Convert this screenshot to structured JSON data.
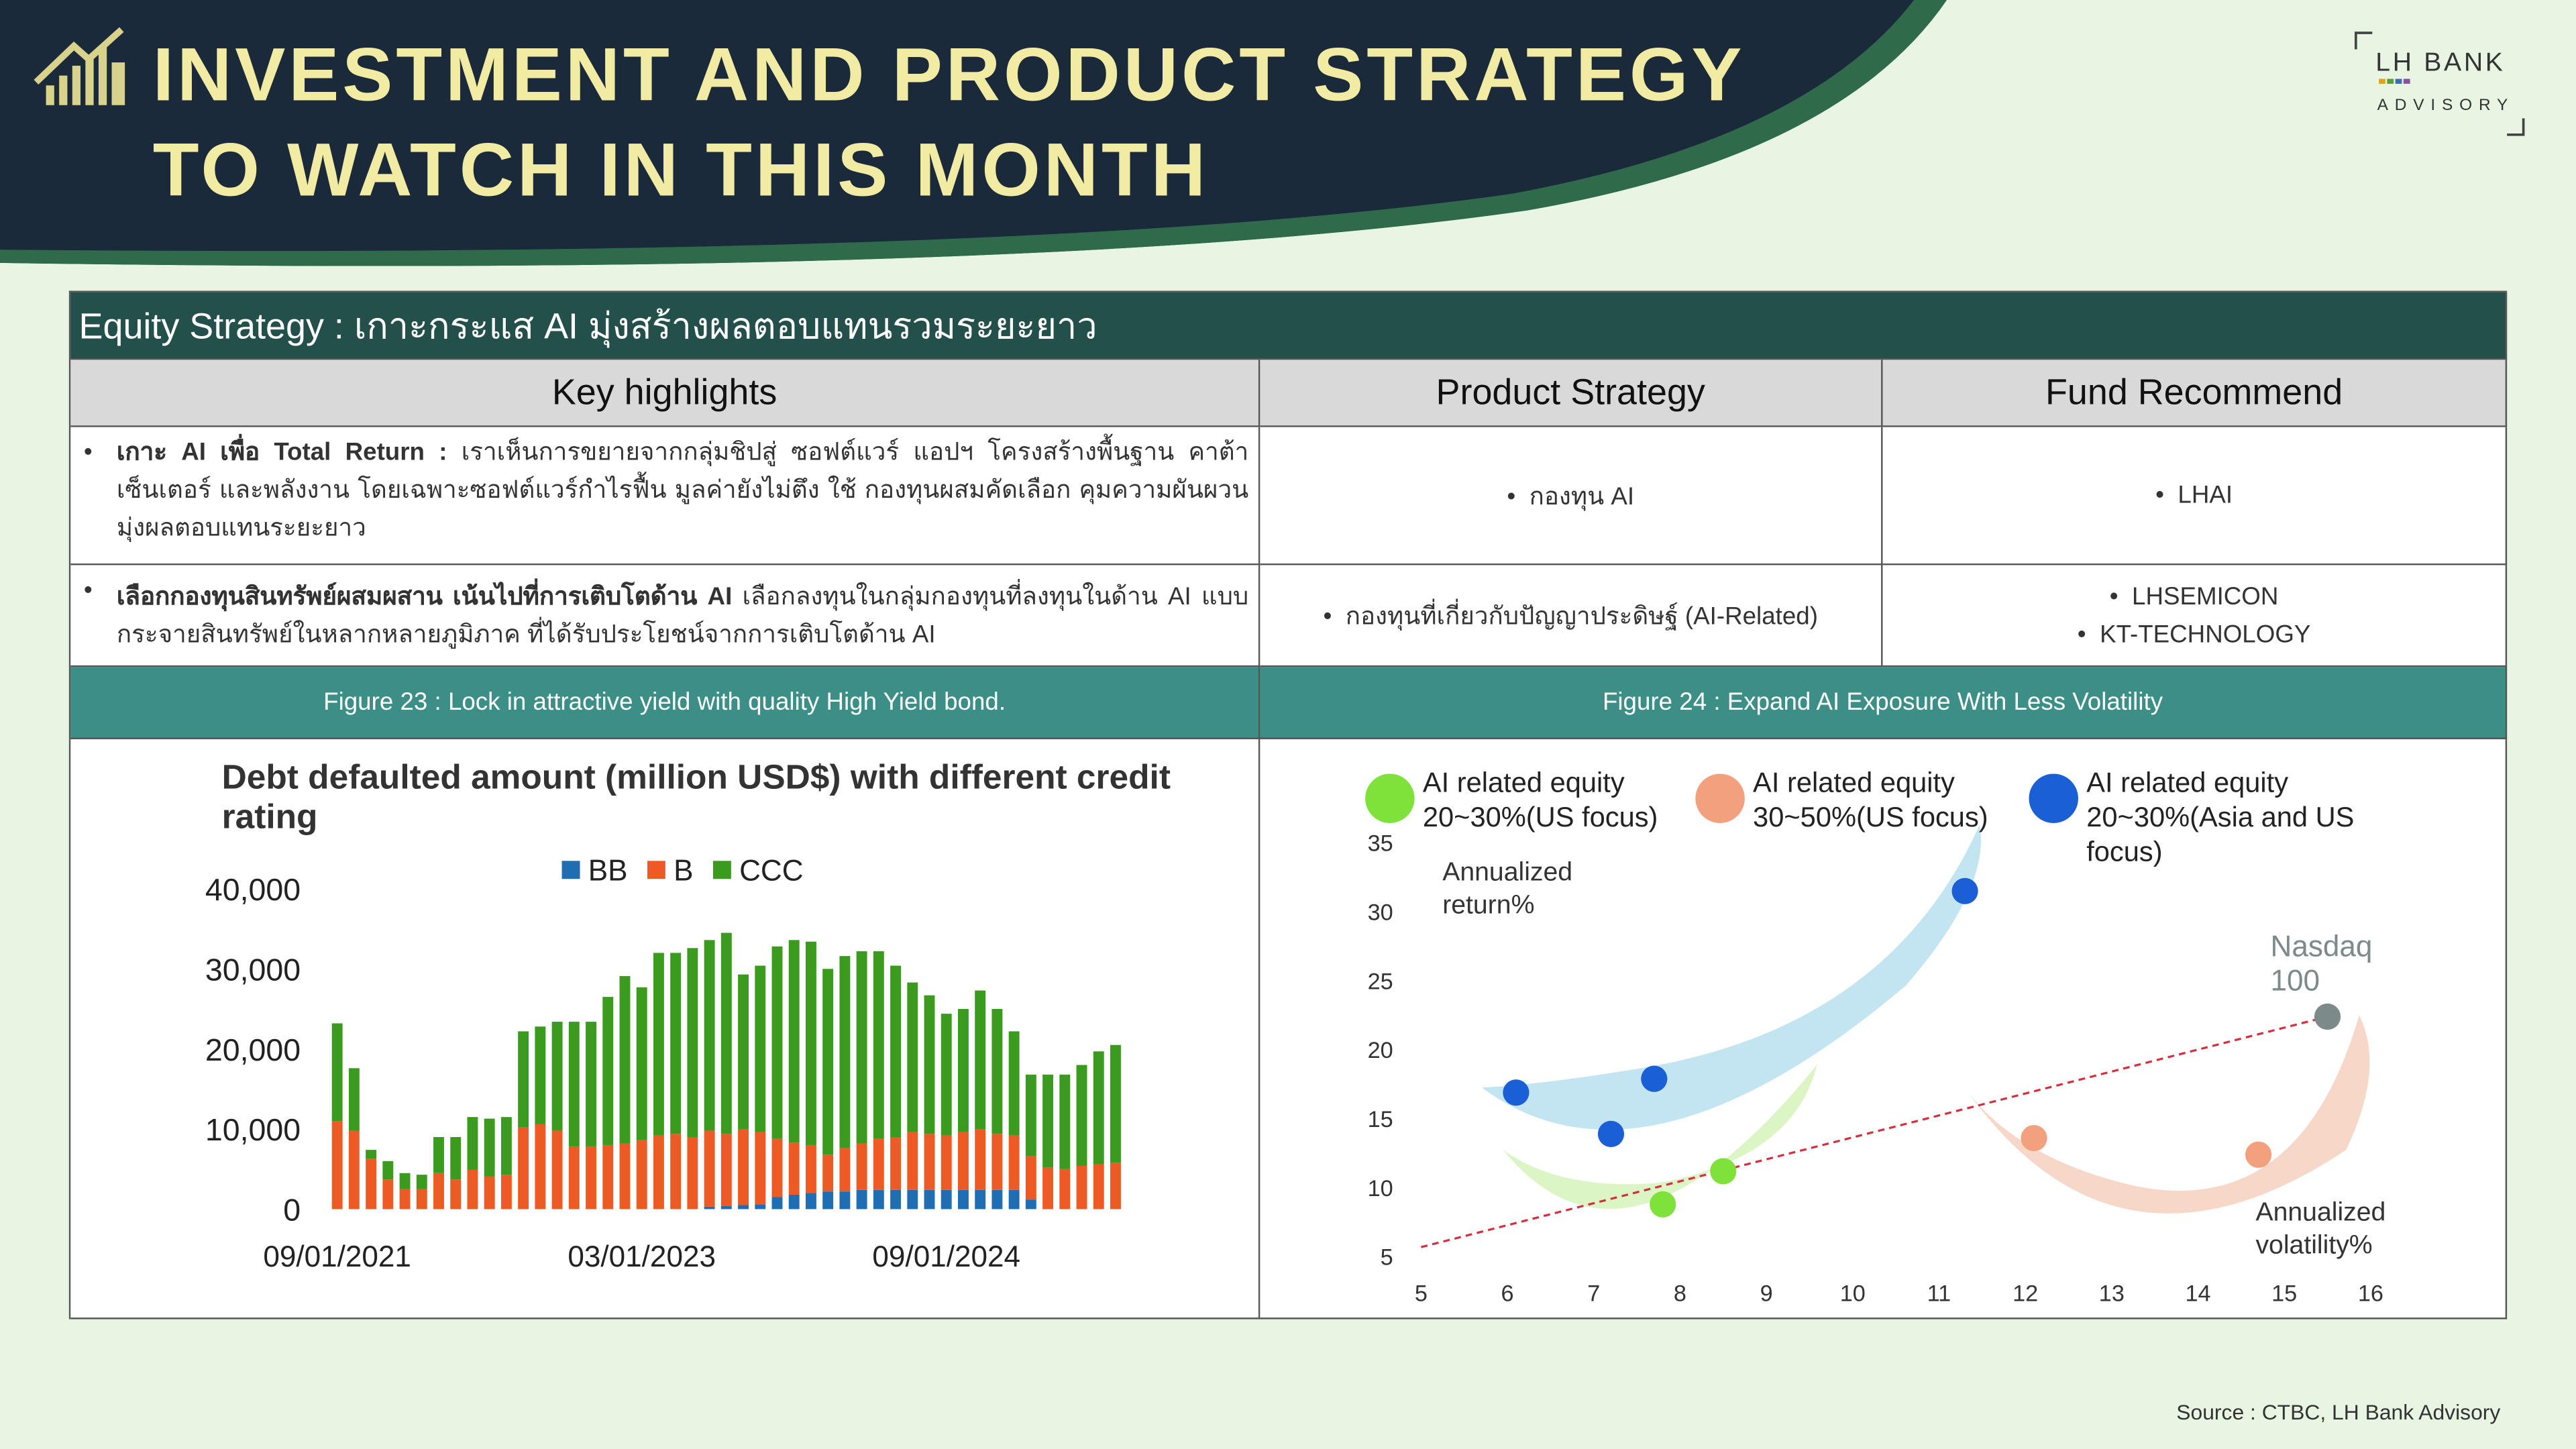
{
  "header": {
    "title_lines": [
      "INVESTMENT AND PRODUCT STRATEGY",
      "TO WATCH IN THIS MONTH"
    ],
    "logo_name": "LH BANK",
    "logo_sub": "ADVISORY"
  },
  "table": {
    "section_title": "Equity Strategy : เกาะกระแส AI มุ่งสร้างผลตอบแทนรวมระยะยาว",
    "headers": [
      "Key highlights",
      "Product Strategy",
      "Fund Recommend"
    ],
    "rows": [
      {
        "highlight_bold": "เกาะ AI เพื่อ Total Return :",
        "highlight_text": "เราเห็นการขยายจากกลุ่มชิปสู่ ซอฟต์แวร์ แอปฯ โครงสร้างพื้นฐาน คาต้าเซ็นเตอร์ และพลังงาน โดยเฉพาะซอฟต์แวร์กำไรฟื้น มูลค่ายังไม่ตึง ใช้ กองทุนผสมคัดเลือก คุมความผันผวน มุ่งผลตอบแทนระยะยาว",
        "product": "กองทุน AI",
        "funds": [
          "LHAI"
        ]
      },
      {
        "highlight_bold": "เลือกกองทุนสินทรัพย์ผสมผสาน เน้นไปที่การเติบโตด้าน AI",
        "highlight_text": "เลือกลงทุนในกลุ่มกองทุนที่ลงทุนในด้าน AI แบบกระจายสินทรัพย์ในหลากหลายภูมิภาค ที่ได้รับประโยชน์จากการเติบโตด้าน AI",
        "product": "กองทุนที่เกี่ยวกับปัญญาประดิษฐ์ (AI-Related)",
        "funds": [
          "LHSEMICON",
          "KT-TECHNOLOGY"
        ]
      }
    ],
    "figure_captions": [
      "Figure 23 : Lock in attractive yield with quality High Yield bond.",
      "Figure 24 : Expand AI Exposure With Less Volatility"
    ]
  },
  "chart_data": [
    {
      "type": "stacked_bar",
      "title": "Debt defaulted amount (million USD$) with different credit rating",
      "categories": [
        "09/01/2021",
        null,
        null,
        null,
        null,
        null,
        null,
        null,
        null,
        null,
        null,
        null,
        null,
        null,
        null,
        null,
        null,
        null,
        "03/01/2023",
        null,
        null,
        null,
        null,
        null,
        null,
        null,
        null,
        null,
        null,
        null,
        null,
        null,
        null,
        null,
        null,
        null,
        "09/01/2024",
        null,
        null,
        null,
        null,
        null,
        null,
        null,
        null,
        null,
        null
      ],
      "series": [
        {
          "name": "BB",
          "color": "#1f6db3",
          "values": [
            0,
            0,
            0,
            0,
            0,
            0,
            0,
            0,
            0,
            0,
            0,
            0,
            0,
            0,
            0,
            0,
            0,
            0,
            0,
            0,
            0,
            0,
            300,
            400,
            500,
            600,
            1500,
            1800,
            2000,
            2200,
            2200,
            2400,
            2400,
            2400,
            2400,
            2400,
            2400,
            2400,
            2400,
            2400,
            2400,
            1200,
            0,
            0,
            0,
            0,
            0
          ]
        },
        {
          "name": "B",
          "color": "#ee5a24",
          "values": [
            11000,
            9800,
            6300,
            3700,
            2500,
            2500,
            4500,
            3700,
            4900,
            4100,
            4300,
            10200,
            10600,
            9800,
            7800,
            7800,
            8000,
            8200,
            8600,
            9200,
            9400,
            9000,
            9500,
            9000,
            9500,
            9000,
            7300,
            6500,
            6000,
            4600,
            5400,
            5800,
            6400,
            6600,
            7200,
            7000,
            6800,
            7200,
            7600,
            7000,
            6800,
            5400,
            5200,
            5000,
            5400,
            5600,
            5800
          ]
        },
        {
          "name": "CCC",
          "color": "#3a9b1f",
          "values": [
            12200,
            7800,
            1100,
            2300,
            2000,
            1800,
            4500,
            5300,
            6600,
            7200,
            7200,
            12000,
            12200,
            13600,
            15600,
            15600,
            18500,
            20900,
            19100,
            22800,
            22600,
            23600,
            23800,
            25100,
            19300,
            20800,
            24000,
            25300,
            25400,
            23200,
            24000,
            24000,
            23400,
            21400,
            18700,
            17300,
            15200,
            15400,
            17300,
            15600,
            13000,
            10200,
            11600,
            11800,
            12600,
            14100,
            14700
          ]
        }
      ],
      "ylim": [
        0,
        40000
      ],
      "yticks": [
        0,
        {
          "value": 10000,
          "label": "10,000"
        },
        {
          "value": 20000,
          "label": "20,000"
        },
        {
          "value": 30000,
          "label": "30,000"
        },
        {
          "value": 40000,
          "label": "40,000"
        }
      ]
    },
    {
      "type": "scatter",
      "y_label": "Annualized return%",
      "x_label": "Annualized volatility%",
      "xlim": [
        5,
        16
      ],
      "ylim": [
        5,
        35
      ],
      "xticks": [
        5,
        6,
        7,
        8,
        9,
        10,
        11,
        12,
        13,
        14,
        15,
        16
      ],
      "yticks": [
        5,
        10,
        15,
        20,
        25,
        30,
        35
      ],
      "series": [
        {
          "name": "AI related equity 20~30%(US focus)",
          "color": "#7ee23a",
          "x": [
            7.8,
            8.5
          ],
          "y": [
            8.8,
            11.2
          ]
        },
        {
          "name": "AI related equity 30~50%(US focus)",
          "color": "#f2a07e",
          "x": [
            12.1,
            14.7
          ],
          "y": [
            13.6,
            12.4
          ]
        },
        {
          "name": "AI related equity 20~30%(Asia and US focus)",
          "color": "#1a5fd6",
          "x": [
            6.1,
            7.2,
            7.7,
            11.3
          ],
          "y": [
            16.9,
            13.9,
            17.9,
            31.5
          ]
        }
      ],
      "annotation_point": {
        "name": "Nasdaq 100",
        "color": "#7d8a8a",
        "x": 15.5,
        "y": 22.4
      },
      "trend_line": {
        "color": "#d62e3c",
        "x": [
          5,
          15.5
        ],
        "y": [
          5.7,
          22.4
        ]
      }
    }
  ],
  "source": "Source : CTBC, LH Bank Advisory"
}
